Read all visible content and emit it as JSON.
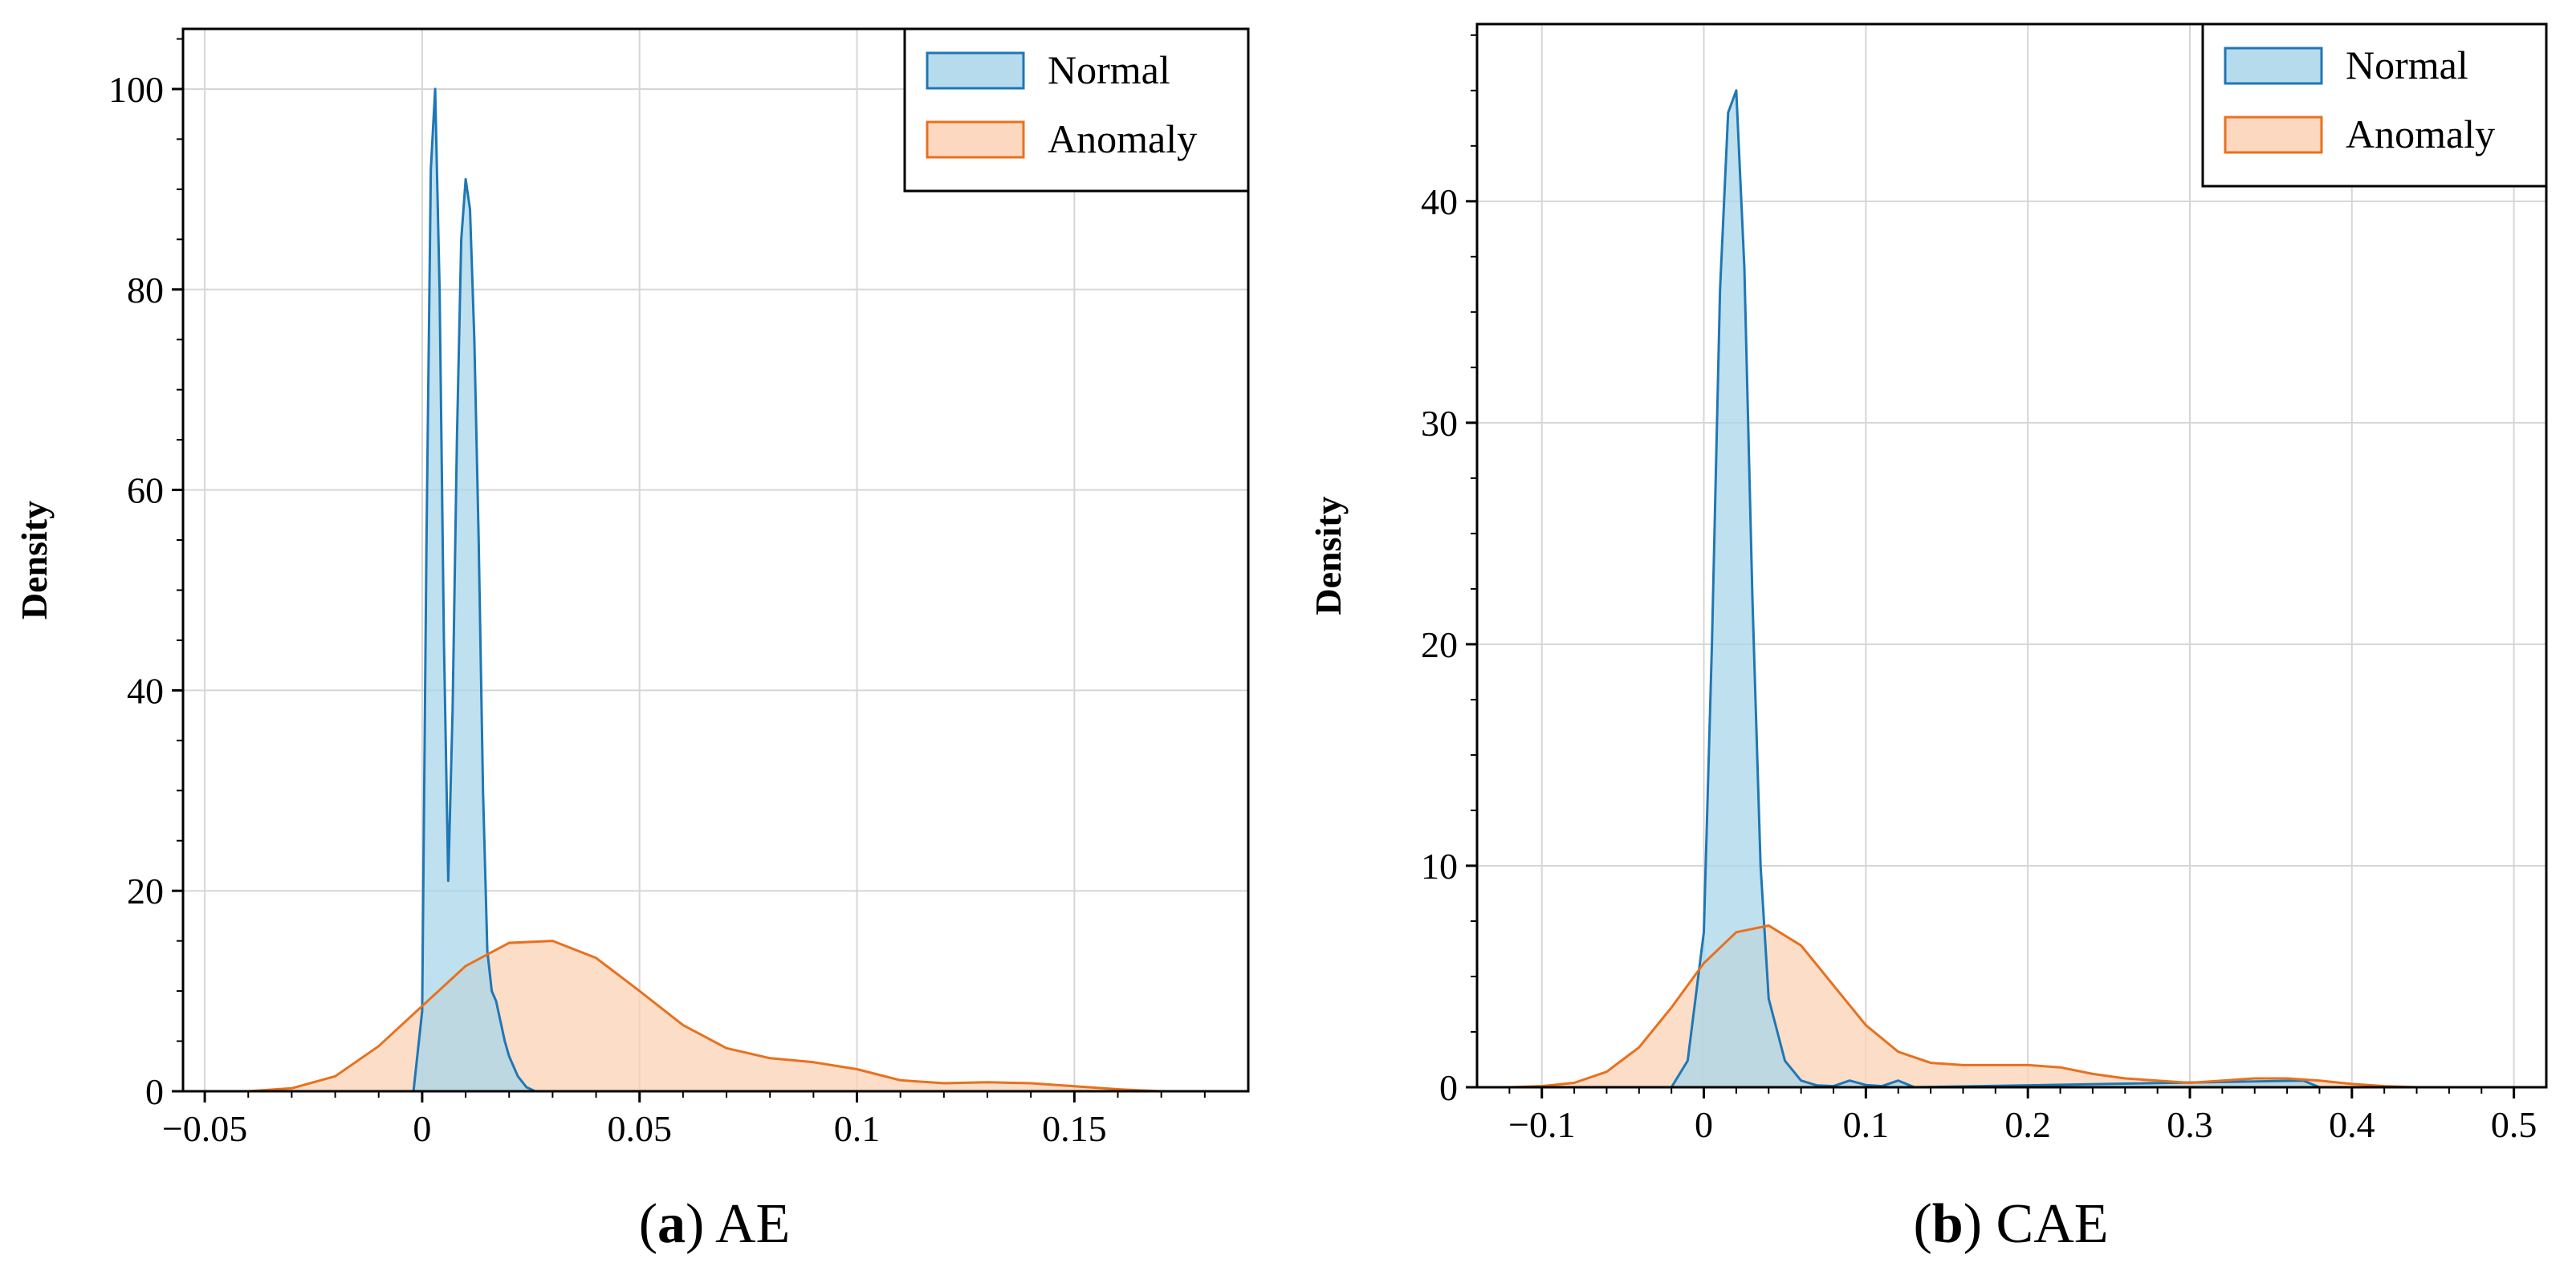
{
  "chart_data": [
    {
      "type": "area",
      "panel_label": "(a)",
      "title": "AE",
      "xlabel": "",
      "ylabel": "Density",
      "xlim": [
        -0.055,
        0.19
      ],
      "ylim": [
        0,
        106
      ],
      "x_ticks": [
        -0.05,
        0,
        0.05,
        0.1,
        0.15
      ],
      "x_tick_labels": [
        "−0.05",
        "0",
        "0.05",
        "0.1",
        "0.15"
      ],
      "y_ticks": [
        0,
        20,
        40,
        60,
        80,
        100
      ],
      "y_tick_labels": [
        "0",
        "20",
        "40",
        "60",
        "80",
        "100"
      ],
      "grid": true,
      "legend": {
        "position": "top-right",
        "entries": [
          "Normal",
          "Anomaly"
        ]
      },
      "series": [
        {
          "name": "Normal",
          "line_color": "#1f77b4",
          "fill_color": "#a9d5ea",
          "x": [
            -0.002,
            0.0,
            0.001,
            0.002,
            0.003,
            0.004,
            0.005,
            0.006,
            0.007,
            0.008,
            0.009,
            0.01,
            0.011,
            0.012,
            0.013,
            0.014,
            0.015,
            0.016,
            0.017,
            0.018,
            0.019,
            0.02,
            0.022,
            0.024,
            0.026
          ],
          "y": [
            0,
            8,
            55,
            92,
            100,
            80,
            45,
            21,
            38,
            65,
            85,
            91,
            88,
            75,
            55,
            30,
            14,
            10,
            9,
            7,
            5,
            3.5,
            1.5,
            0.4,
            0
          ]
        },
        {
          "name": "Anomaly",
          "line_color": "#e8711d",
          "fill_color": "#fbd1b5",
          "x": [
            -0.04,
            -0.03,
            -0.02,
            -0.01,
            0.0,
            0.01,
            0.02,
            0.03,
            0.04,
            0.05,
            0.06,
            0.07,
            0.08,
            0.09,
            0.1,
            0.11,
            0.12,
            0.13,
            0.14,
            0.15,
            0.16,
            0.17
          ],
          "y": [
            0,
            0.3,
            1.5,
            4.5,
            8.5,
            12.5,
            14.8,
            15.0,
            13.3,
            10.0,
            6.6,
            4.3,
            3.3,
            2.9,
            2.2,
            1.1,
            0.8,
            0.9,
            0.8,
            0.5,
            0.2,
            0
          ]
        }
      ]
    },
    {
      "type": "area",
      "panel_label": "(b)",
      "title": "CAE",
      "xlabel": "",
      "ylabel": "Density",
      "xlim": [
        -0.14,
        0.52
      ],
      "ylim": [
        0,
        48
      ],
      "x_ticks": [
        -0.1,
        0,
        0.1,
        0.2,
        0.3,
        0.4,
        0.5
      ],
      "x_tick_labels": [
        "−0.1",
        "0",
        "0.1",
        "0.2",
        "0.3",
        "0.4",
        "0.5"
      ],
      "y_ticks": [
        0,
        10,
        20,
        30,
        40
      ],
      "y_tick_labels": [
        "0",
        "10",
        "20",
        "30",
        "40"
      ],
      "grid": true,
      "legend": {
        "position": "top-right",
        "entries": [
          "Normal",
          "Anomaly"
        ]
      },
      "series": [
        {
          "name": "Normal",
          "line_color": "#1f77b4",
          "fill_color": "#a9d5ea",
          "x": [
            -0.02,
            -0.01,
            0.0,
            0.005,
            0.01,
            0.015,
            0.02,
            0.025,
            0.03,
            0.035,
            0.04,
            0.05,
            0.06,
            0.07,
            0.08,
            0.09,
            0.1,
            0.11,
            0.12,
            0.13,
            0.37,
            0.38
          ],
          "y": [
            0,
            1.2,
            7,
            20,
            36,
            44,
            45,
            37,
            22,
            10,
            4,
            1.2,
            0.3,
            0.08,
            0.05,
            0.3,
            0.1,
            0.05,
            0.3,
            0,
            0.3,
            0
          ]
        },
        {
          "name": "Anomaly",
          "line_color": "#e8711d",
          "fill_color": "#fbd1b5",
          "x": [
            -0.12,
            -0.1,
            -0.08,
            -0.06,
            -0.04,
            -0.02,
            0.0,
            0.02,
            0.04,
            0.06,
            0.08,
            0.1,
            0.12,
            0.14,
            0.16,
            0.18,
            0.2,
            0.22,
            0.24,
            0.26,
            0.28,
            0.3,
            0.32,
            0.34,
            0.36,
            0.38,
            0.4,
            0.42,
            0.44
          ],
          "y": [
            0,
            0.05,
            0.2,
            0.7,
            1.8,
            3.6,
            5.6,
            7.0,
            7.3,
            6.4,
            4.6,
            2.8,
            1.6,
            1.1,
            1.0,
            1.0,
            1.0,
            0.9,
            0.6,
            0.4,
            0.3,
            0.2,
            0.3,
            0.4,
            0.4,
            0.3,
            0.15,
            0.05,
            0
          ]
        }
      ]
    }
  ]
}
